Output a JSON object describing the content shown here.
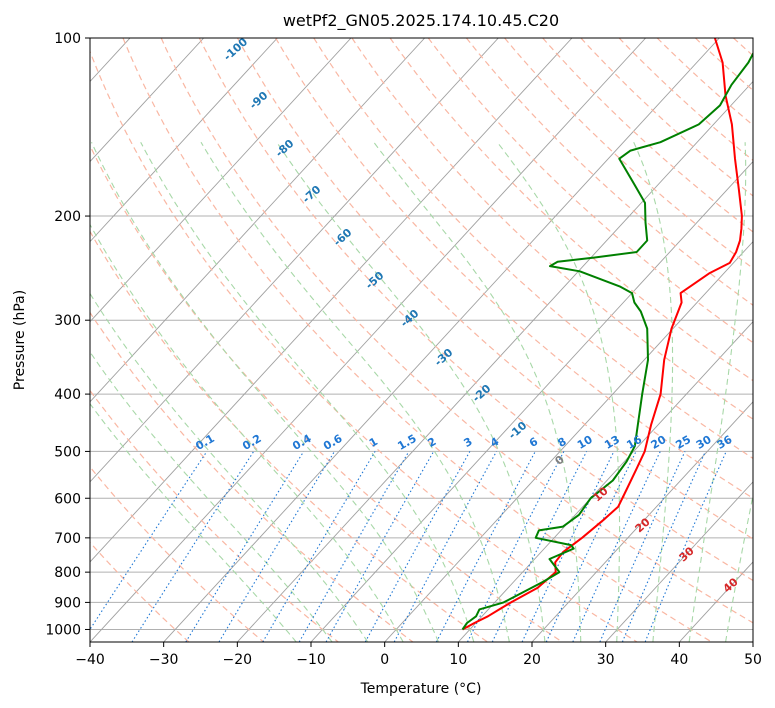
{
  "chart_data": {
    "type": "line",
    "title": "wetPf2_GN05.2025.174.10.45.C20",
    "xlabel": "Temperature (°C)",
    "ylabel": "Pressure (hPa)",
    "xlim": [
      -40,
      50
    ],
    "ylim": [
      1050,
      100
    ],
    "y_scale": "log",
    "x_ticks": [
      "−40",
      "−30",
      "−20",
      "−10",
      "0",
      "10",
      "20",
      "30",
      "40",
      "50"
    ],
    "y_ticks": [
      {
        "value": 100,
        "label": "100"
      },
      {
        "value": 200,
        "label": "200"
      },
      {
        "value": 300,
        "label": "300"
      },
      {
        "value": 400,
        "label": "400"
      },
      {
        "value": 500,
        "label": "500"
      },
      {
        "value": 600,
        "label": "600"
      },
      {
        "value": 700,
        "label": "700"
      },
      {
        "value": 800,
        "label": "800"
      },
      {
        "value": 900,
        "label": "900"
      },
      {
        "value": 1000,
        "label": "1000"
      }
    ],
    "grid": true,
    "series": [
      {
        "color": "#ff0000",
        "points": [
          [
            9.0,
            1000
          ],
          [
            9.8,
            975
          ],
          [
            10.8,
            950
          ],
          [
            11.5,
            925
          ],
          [
            12.2,
            900
          ],
          [
            14.0,
            850
          ],
          [
            14.5,
            800
          ],
          [
            13.2,
            770
          ],
          [
            13.0,
            740
          ],
          [
            13.8,
            700
          ],
          [
            14.5,
            650
          ],
          [
            14.8,
            620
          ],
          [
            13.8,
            580
          ],
          [
            12.7,
            540
          ],
          [
            11.5,
            500
          ],
          [
            9.0,
            450
          ],
          [
            6.5,
            400
          ],
          [
            2.7,
            350
          ],
          [
            -0.2,
            310
          ],
          [
            -2.1,
            280
          ],
          [
            -3.4,
            270
          ],
          [
            -2.7,
            260
          ],
          [
            -2.0,
            250
          ],
          [
            -0.5,
            240
          ],
          [
            -1.0,
            230
          ],
          [
            -1.9,
            220
          ],
          [
            -3.2,
            210
          ],
          [
            -4.7,
            200
          ],
          [
            -8.5,
            180
          ],
          [
            -12.8,
            160
          ],
          [
            -17.5,
            140
          ],
          [
            -22.0,
            125
          ],
          [
            -26.5,
            110
          ],
          [
            -30.6,
            100
          ]
        ]
      },
      {
        "color": "#008000",
        "points": [
          [
            9.0,
            1000
          ],
          [
            8.8,
            975
          ],
          [
            9.2,
            950
          ],
          [
            8.8,
            925
          ],
          [
            11.2,
            900
          ],
          [
            14.0,
            830
          ],
          [
            15.0,
            800
          ],
          [
            12.0,
            760
          ],
          [
            14.0,
            730
          ],
          [
            13.2,
            720
          ],
          [
            7.5,
            700
          ],
          [
            7.0,
            680
          ],
          [
            9.8,
            670
          ],
          [
            10.5,
            640
          ],
          [
            10.0,
            600
          ],
          [
            10.8,
            560
          ],
          [
            10.3,
            520
          ],
          [
            9.5,
            490
          ],
          [
            7.2,
            450
          ],
          [
            4.0,
            400
          ],
          [
            0.5,
            350
          ],
          [
            -3.5,
            310
          ],
          [
            -6.5,
            290
          ],
          [
            -8.5,
            280
          ],
          [
            -10.0,
            270
          ],
          [
            -12.5,
            263
          ],
          [
            -19.8,
            248
          ],
          [
            -24.5,
            243
          ],
          [
            -24.0,
            239
          ],
          [
            -19.5,
            235
          ],
          [
            -14.5,
            230
          ],
          [
            -14.5,
            220
          ],
          [
            -17.0,
            205
          ],
          [
            -19.5,
            190
          ],
          [
            -23.8,
            175
          ],
          [
            -28.5,
            160
          ],
          [
            -28.0,
            155
          ],
          [
            -25.0,
            150
          ],
          [
            -22.0,
            140
          ],
          [
            -21.5,
            130
          ],
          [
            -22.5,
            120
          ],
          [
            -23.0,
            110
          ],
          [
            -24.3,
            100
          ]
        ]
      }
    ],
    "dry_adiabats_C": [
      -30,
      -20,
      -10,
      0,
      10,
      20,
      30,
      40,
      50,
      60,
      70,
      80,
      90,
      100,
      110,
      120,
      130,
      140,
      150,
      160,
      170,
      180,
      190,
      200
    ],
    "moist_adiabats_C": [
      -15,
      -10,
      -5,
      0,
      5,
      10,
      15,
      20,
      25,
      30,
      35,
      40,
      45
    ],
    "mixing_ratios": [
      "0.1",
      "0.2",
      "0.4",
      "0.6",
      "1",
      "1.5",
      "2",
      "3",
      "4",
      "6",
      "8",
      "10",
      "13",
      "16",
      "20",
      "25",
      "30",
      "36"
    ],
    "isotherm_labels": [
      "-100",
      "-90",
      "-80",
      "-70",
      "-60",
      "-50",
      "-40",
      "-30",
      "-20",
      "-10",
      "0",
      "10",
      "20",
      "30",
      "40"
    ],
    "colors": {
      "temperature": "#ff0000",
      "dewpoint": "#008000",
      "dry_adiabat": "#f9b7a3",
      "moist_adiabat": "#a8d8a8",
      "mixing_ratio": "#1f77d4",
      "isotherm": "#a0a0a0",
      "isotherm_label_cold": "#1f77b4",
      "isotherm_label_warm": "#d62728",
      "isotherm_label_zero": "#7f7f7f",
      "dry_adiabat_ref": "#e8c8a8"
    }
  }
}
